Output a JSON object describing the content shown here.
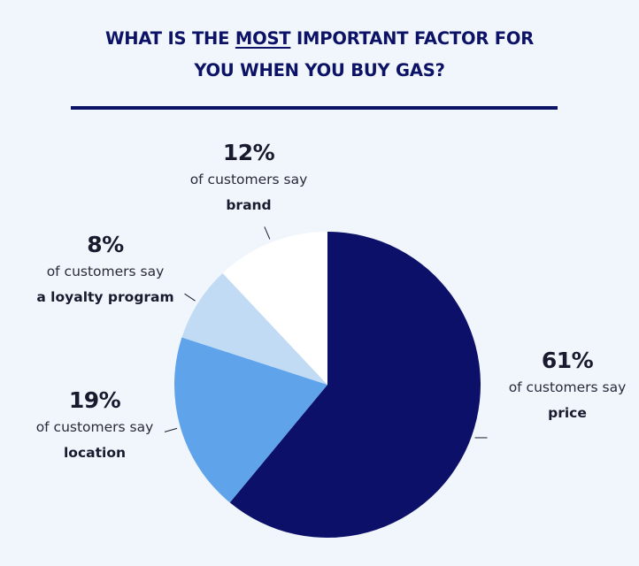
{
  "title": {
    "line1_before": "WHAT IS THE ",
    "line1_emph": "MOST",
    "line1_after": " IMPORTANT FACTOR FOR",
    "line2": "YOU WHEN YOU BUY GAS?"
  },
  "chart_data": {
    "type": "pie",
    "title": "WHAT IS THE MOST IMPORTANT FACTOR FOR YOU WHEN YOU BUY GAS?",
    "slices": [
      {
        "label": "price",
        "value": 61,
        "pct_text": "61%",
        "prefix": "of customers say",
        "color": "#0c1068"
      },
      {
        "label": "location",
        "value": 19,
        "pct_text": "19%",
        "prefix": "of customers say",
        "color": "#5fa3ea"
      },
      {
        "label": "a loyalty program",
        "value": 8,
        "pct_text": "8%",
        "prefix": "of customers say",
        "color": "#c2dbf5"
      },
      {
        "label": "brand",
        "value": 12,
        "pct_text": "12%",
        "prefix": "of customers say",
        "color": "#ffffff"
      }
    ],
    "start_angle": "12 o'clock",
    "direction": "clockwise",
    "legend": "none"
  }
}
